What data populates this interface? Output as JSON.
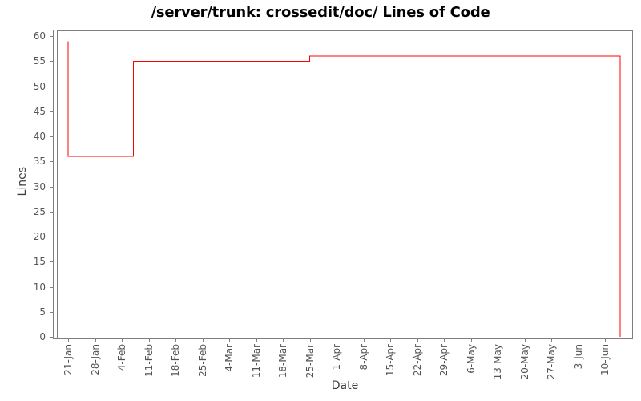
{
  "title": "/server/trunk: crossedit/doc/ Lines of Code",
  "axes": {
    "x_label": "Date",
    "y_label": "Lines"
  },
  "chart_data": {
    "type": "line",
    "subtype": "step",
    "title": "/server/trunk: crossedit/doc/ Lines of Code",
    "xlabel": "Date",
    "ylabel": "Lines",
    "line_color": "#ff0000",
    "axis_color": "#7f7f7f",
    "background": "#ffffff",
    "grid": false,
    "legend": "none",
    "ylim": [
      0,
      60
    ],
    "y_tick_step": 5,
    "y_ticks": [
      0,
      5,
      10,
      15,
      20,
      25,
      30,
      35,
      40,
      45,
      50,
      55,
      60
    ],
    "x_tick_labels": [
      "21-Jan",
      "28-Jan",
      "4-Feb",
      "11-Feb",
      "18-Feb",
      "25-Feb",
      "4-Mar",
      "11-Mar",
      "18-Mar",
      "25-Mar",
      "1-Apr",
      "8-Apr",
      "15-Apr",
      "22-Apr",
      "29-Apr",
      "6-May",
      "13-May",
      "20-May",
      "27-May",
      "3-Jun",
      "10-Jun"
    ],
    "points": [
      {
        "date": "21-Jan",
        "day": 0,
        "lines": 59
      },
      {
        "date": "21-Jan",
        "day": 0,
        "lines": 36
      },
      {
        "date": "7-Feb",
        "day": 17,
        "lines": 36
      },
      {
        "date": "7-Feb",
        "day": 17,
        "lines": 55
      },
      {
        "date": "25-Mar",
        "day": 63,
        "lines": 55
      },
      {
        "date": "25-Mar",
        "day": 63,
        "lines": 56
      },
      {
        "date": "14-Jun",
        "day": 144,
        "lines": 56
      },
      {
        "date": "14-Jun",
        "day": 144,
        "lines": 0
      }
    ]
  }
}
